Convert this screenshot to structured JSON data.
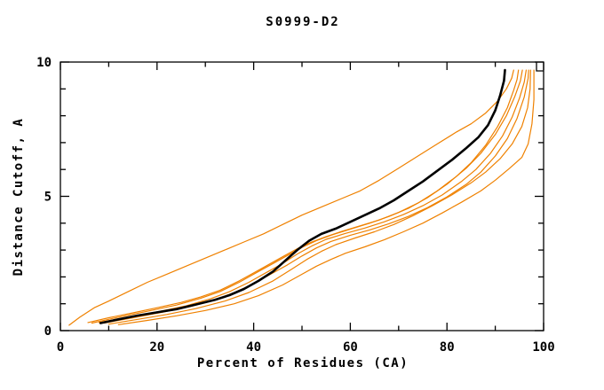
{
  "figure": {
    "title": "S0999-D2",
    "xlabel": "Percent of Residues (CA)",
    "ylabel": "Distance Cutoff, A"
  },
  "chart_data": {
    "type": "line",
    "title": "S0999-D2",
    "xlabel": "Percent of Residues (CA)",
    "ylabel": "Distance Cutoff, A",
    "xlim": [
      0,
      100
    ],
    "ylim": [
      0,
      10
    ],
    "x_ticks_major": [
      0,
      20,
      40,
      60,
      80,
      100
    ],
    "x_minor_step": 10,
    "y_ticks_major": [
      0,
      5,
      10
    ],
    "y_minor_step": 1,
    "grid": false,
    "legend": "none",
    "colors": {
      "model": "#ef8100",
      "reference": "#000000"
    },
    "series": [
      {
        "name": "orange-curve-1",
        "color": "#ef8100",
        "width": 1.2,
        "points": [
          [
            1.8,
            0.2
          ],
          [
            4,
            0.5
          ],
          [
            7,
            0.85
          ],
          [
            10,
            1.1
          ],
          [
            14,
            1.45
          ],
          [
            18,
            1.8
          ],
          [
            22,
            2.1
          ],
          [
            26,
            2.4
          ],
          [
            30,
            2.7
          ],
          [
            34,
            3.0
          ],
          [
            38,
            3.3
          ],
          [
            42,
            3.6
          ],
          [
            46,
            3.95
          ],
          [
            50,
            4.3
          ],
          [
            54,
            4.6
          ],
          [
            58,
            4.9
          ],
          [
            62,
            5.2
          ],
          [
            66,
            5.6
          ],
          [
            70,
            6.05
          ],
          [
            74,
            6.5
          ],
          [
            78,
            6.95
          ],
          [
            82,
            7.4
          ],
          [
            85,
            7.7
          ],
          [
            88,
            8.1
          ],
          [
            90.5,
            8.55
          ],
          [
            92.3,
            9.0
          ],
          [
            93.4,
            9.4
          ],
          [
            93.8,
            9.7
          ]
        ]
      },
      {
        "name": "orange-curve-2",
        "color": "#ef8100",
        "width": 1.2,
        "points": [
          [
            5.7,
            0.3
          ],
          [
            10,
            0.48
          ],
          [
            15,
            0.66
          ],
          [
            20,
            0.85
          ],
          [
            25,
            1.05
          ],
          [
            29,
            1.25
          ],
          [
            33,
            1.5
          ],
          [
            37,
            1.85
          ],
          [
            40,
            2.15
          ],
          [
            43,
            2.45
          ],
          [
            46,
            2.75
          ],
          [
            49,
            3.05
          ],
          [
            52,
            3.3
          ],
          [
            55,
            3.5
          ],
          [
            58,
            3.68
          ],
          [
            62,
            3.9
          ],
          [
            66,
            4.12
          ],
          [
            70,
            4.4
          ],
          [
            74,
            4.75
          ],
          [
            78,
            5.2
          ],
          [
            82,
            5.75
          ],
          [
            85,
            6.25
          ],
          [
            88,
            6.9
          ],
          [
            90.5,
            7.6
          ],
          [
            92.5,
            8.3
          ],
          [
            93.8,
            8.95
          ],
          [
            94.5,
            9.35
          ],
          [
            94.8,
            9.7
          ]
        ]
      },
      {
        "name": "orange-curve-3",
        "color": "#ef8100",
        "width": 1.2,
        "points": [
          [
            6.5,
            0.28
          ],
          [
            12,
            0.5
          ],
          [
            18,
            0.72
          ],
          [
            24,
            0.95
          ],
          [
            29,
            1.2
          ],
          [
            33,
            1.45
          ],
          [
            37,
            1.8
          ],
          [
            41,
            2.2
          ],
          [
            44,
            2.5
          ],
          [
            47,
            2.8
          ],
          [
            50,
            3.1
          ],
          [
            53,
            3.35
          ],
          [
            56,
            3.55
          ],
          [
            60,
            3.78
          ],
          [
            64,
            4.0
          ],
          [
            68,
            4.25
          ],
          [
            72,
            4.55
          ],
          [
            76,
            4.95
          ],
          [
            80,
            5.45
          ],
          [
            84,
            6.05
          ],
          [
            87,
            6.6
          ],
          [
            90,
            7.3
          ],
          [
            92.3,
            8.0
          ],
          [
            94,
            8.7
          ],
          [
            95.2,
            9.3
          ],
          [
            95.6,
            9.7
          ]
        ]
      },
      {
        "name": "orange-curve-4",
        "color": "#ef8100",
        "width": 1.2,
        "points": [
          [
            8,
            0.3
          ],
          [
            14,
            0.5
          ],
          [
            20,
            0.7
          ],
          [
            26,
            0.92
          ],
          [
            31,
            1.18
          ],
          [
            35,
            1.45
          ],
          [
            39,
            1.8
          ],
          [
            43,
            2.2
          ],
          [
            46,
            2.5
          ],
          [
            49,
            2.85
          ],
          [
            52,
            3.15
          ],
          [
            55,
            3.4
          ],
          [
            59,
            3.62
          ],
          [
            63,
            3.82
          ],
          [
            67,
            4.05
          ],
          [
            71,
            4.32
          ],
          [
            75,
            4.65
          ],
          [
            79,
            5.05
          ],
          [
            83,
            5.55
          ],
          [
            86,
            6.0
          ],
          [
            89,
            6.6
          ],
          [
            91.5,
            7.25
          ],
          [
            93.5,
            7.95
          ],
          [
            95,
            8.65
          ],
          [
            96,
            9.25
          ],
          [
            96.4,
            9.7
          ]
        ]
      },
      {
        "name": "orange-curve-5",
        "color": "#ef8100",
        "width": 1.2,
        "points": [
          [
            9,
            0.28
          ],
          [
            15,
            0.48
          ],
          [
            21,
            0.68
          ],
          [
            27,
            0.9
          ],
          [
            32,
            1.15
          ],
          [
            36,
            1.42
          ],
          [
            40,
            1.75
          ],
          [
            44,
            2.15
          ],
          [
            47,
            2.45
          ],
          [
            50,
            2.78
          ],
          [
            53,
            3.08
          ],
          [
            56,
            3.32
          ],
          [
            60,
            3.55
          ],
          [
            64,
            3.75
          ],
          [
            68,
            3.98
          ],
          [
            72,
            4.25
          ],
          [
            76,
            4.58
          ],
          [
            80,
            4.98
          ],
          [
            84,
            5.45
          ],
          [
            87,
            5.9
          ],
          [
            90,
            6.5
          ],
          [
            92.5,
            7.15
          ],
          [
            94.5,
            7.9
          ],
          [
            96,
            8.7
          ],
          [
            96.8,
            9.4
          ],
          [
            96.9,
            9.7
          ]
        ]
      },
      {
        "name": "orange-curve-6",
        "color": "#ef8100",
        "width": 1.2,
        "points": [
          [
            10,
            0.24
          ],
          [
            16,
            0.42
          ],
          [
            22,
            0.6
          ],
          [
            28,
            0.82
          ],
          [
            34,
            1.1
          ],
          [
            39,
            1.42
          ],
          [
            44,
            1.85
          ],
          [
            48,
            2.3
          ],
          [
            51,
            2.65
          ],
          [
            54,
            2.95
          ],
          [
            57,
            3.2
          ],
          [
            61,
            3.45
          ],
          [
            65,
            3.68
          ],
          [
            69,
            3.95
          ],
          [
            73,
            4.28
          ],
          [
            77,
            4.65
          ],
          [
            81,
            5.05
          ],
          [
            85,
            5.5
          ],
          [
            88,
            5.9
          ],
          [
            91,
            6.4
          ],
          [
            93.5,
            6.95
          ],
          [
            95.5,
            7.6
          ],
          [
            96.7,
            8.3
          ],
          [
            97.2,
            9.0
          ],
          [
            97.3,
            9.7
          ]
        ]
      },
      {
        "name": "orange-curve-7",
        "color": "#ef8100",
        "width": 1.2,
        "points": [
          [
            12,
            0.22
          ],
          [
            18,
            0.38
          ],
          [
            24,
            0.55
          ],
          [
            30,
            0.75
          ],
          [
            36,
            1.0
          ],
          [
            41,
            1.3
          ],
          [
            46,
            1.7
          ],
          [
            50,
            2.1
          ],
          [
            53,
            2.4
          ],
          [
            56,
            2.65
          ],
          [
            59,
            2.88
          ],
          [
            63,
            3.12
          ],
          [
            67,
            3.38
          ],
          [
            71,
            3.68
          ],
          [
            75,
            4.0
          ],
          [
            79,
            4.38
          ],
          [
            83,
            4.78
          ],
          [
            87,
            5.2
          ],
          [
            90,
            5.6
          ],
          [
            93,
            6.05
          ],
          [
            95.5,
            6.45
          ],
          [
            96.8,
            6.95
          ],
          [
            97.6,
            7.7
          ],
          [
            98,
            8.6
          ],
          [
            98,
            9.7
          ]
        ]
      },
      {
        "name": "black-curve",
        "color": "#000000",
        "width": 2.6,
        "points": [
          [
            8.3,
            0.28
          ],
          [
            12,
            0.42
          ],
          [
            16,
            0.56
          ],
          [
            20,
            0.68
          ],
          [
            24,
            0.8
          ],
          [
            28,
            0.97
          ],
          [
            32,
            1.15
          ],
          [
            35,
            1.32
          ],
          [
            38,
            1.55
          ],
          [
            41,
            1.85
          ],
          [
            44,
            2.2
          ],
          [
            46.5,
            2.6
          ],
          [
            49,
            3.0
          ],
          [
            51.5,
            3.35
          ],
          [
            54,
            3.6
          ],
          [
            57,
            3.8
          ],
          [
            60,
            4.05
          ],
          [
            63,
            4.3
          ],
          [
            66,
            4.55
          ],
          [
            69,
            4.85
          ],
          [
            72,
            5.2
          ],
          [
            75,
            5.55
          ],
          [
            78,
            5.95
          ],
          [
            81,
            6.35
          ],
          [
            84,
            6.8
          ],
          [
            86.5,
            7.2
          ],
          [
            88.5,
            7.65
          ],
          [
            90,
            8.2
          ],
          [
            91,
            8.75
          ],
          [
            91.8,
            9.3
          ],
          [
            92,
            9.7
          ]
        ]
      }
    ]
  }
}
